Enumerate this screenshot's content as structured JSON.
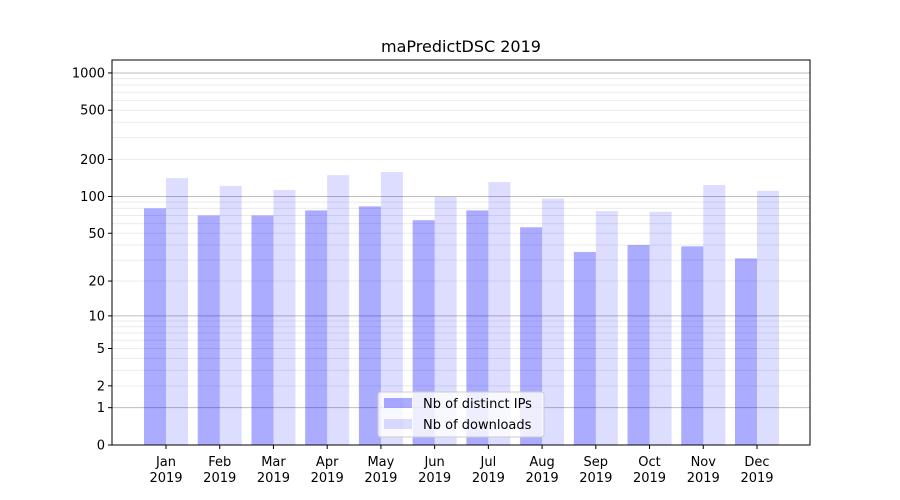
{
  "chart_data": {
    "type": "bar",
    "title": "maPredictDSC 2019",
    "xlabel": "",
    "ylabel": "",
    "yscale": "log10(1+y)",
    "ylim": [
      0,
      1300
    ],
    "yticks": [
      0,
      1,
      2,
      5,
      10,
      20,
      50,
      100,
      200,
      500,
      1000
    ],
    "grid": true,
    "legend_position": "bottom-center",
    "categories": [
      "Jan\n2019",
      "Feb\n2019",
      "Mar\n2019",
      "Apr\n2019",
      "May\n2019",
      "Jun\n2019",
      "Jul\n2019",
      "Aug\n2019",
      "Sep\n2019",
      "Oct\n2019",
      "Nov\n2019",
      "Dec\n2019"
    ],
    "series": [
      {
        "name": "Nb of distinct IPs",
        "color": "#aaaaff",
        "values": [
          80,
          70,
          70,
          77,
          83,
          64,
          77,
          56,
          35,
          40,
          39,
          31
        ]
      },
      {
        "name": "Nb of downloads",
        "color": "#ddddff",
        "values": [
          141,
          122,
          113,
          149,
          158,
          99,
          131,
          96,
          76,
          75,
          124,
          111
        ]
      }
    ]
  }
}
